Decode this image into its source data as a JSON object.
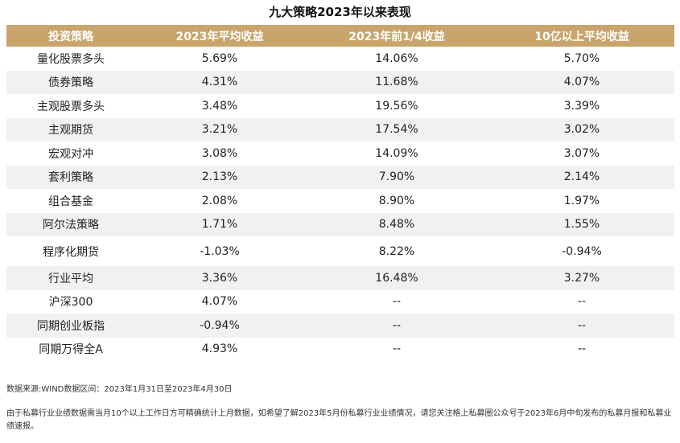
{
  "title": "九大策略2023年以来表现",
  "table": {
    "headers": [
      "投资策略",
      "2023年平均收益",
      "2023年前1/4收益",
      "10亿以上平均收益"
    ],
    "rows": [
      [
        "量化股票多头",
        "5.69%",
        "14.06%",
        "5.70%"
      ],
      [
        "债券策略",
        "4.31%",
        "11.68%",
        "4.07%"
      ],
      [
        "主观股票多头",
        "3.48%",
        "19.56%",
        "3.39%"
      ],
      [
        "主观期货",
        "3.21%",
        "17.54%",
        "3.02%"
      ],
      [
        "宏观对冲",
        "3.08%",
        "14.09%",
        "3.07%"
      ],
      [
        "套利策略",
        "2.13%",
        "7.90%",
        "2.14%"
      ],
      [
        "组合基金",
        "2.08%",
        "8.90%",
        "1.97%"
      ],
      [
        "阿尔法策略",
        "1.71%",
        "8.48%",
        "1.55%"
      ],
      [
        "程序化期货",
        "-1.03%",
        "8.22%",
        "-0.94%"
      ],
      [
        "行业平均",
        "3.36%",
        "16.48%",
        "3.27%"
      ],
      [
        "沪深300",
        "4.07%",
        "--",
        "--"
      ],
      [
        "同期创业板指",
        "-0.94%",
        "--",
        "--"
      ],
      [
        "同期万得全A",
        "4.93%",
        "--",
        "--"
      ]
    ]
  },
  "notes": {
    "source": "数据来源:WIND数据区间：2023年1月31日至2023年4月30日",
    "disclaimer": "由于私募行业业绩数据需当月10个以上工作日方可精确统计上月数据，如希望了解2023年5月份私募行业业绩情况，请您关注格上私募圈公众号于2023年6月中旬发布的私募月报和私募业绩速报。"
  },
  "colors": {
    "header_bg": "#c9a46b",
    "stripe_bg": "#f1f1f1"
  }
}
